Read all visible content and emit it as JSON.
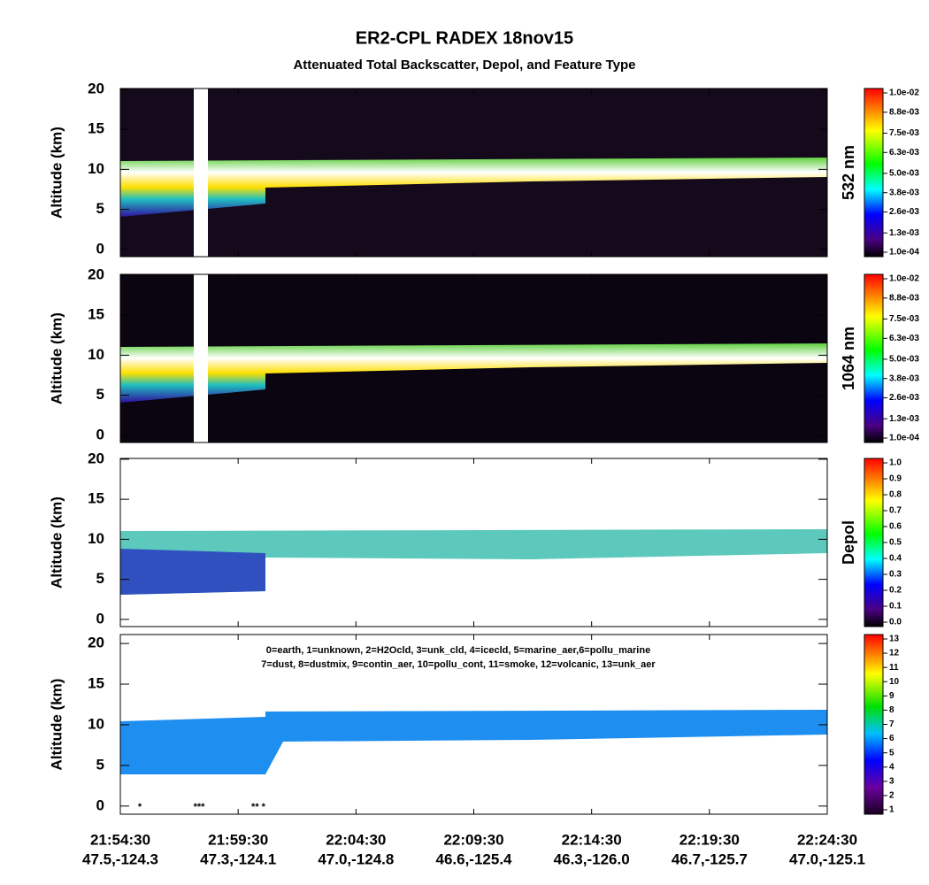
{
  "chart_data": {
    "type": "curtain",
    "title": "ER2-CPL RADEX 18nov15",
    "subtitle": "Attenuated Total Backscatter, Depol, and Feature Type",
    "categories": [
      "21:54:30",
      "21:59:30",
      "22:04:30",
      "22:09:30",
      "22:14:30",
      "22:19:30",
      "22:24:30"
    ],
    "locations": [
      "47.5,-124.3",
      "47.3,-124.1",
      "47.0,-124.8",
      "46.6,-125.4",
      "46.3,-126.0",
      "46.7,-125.7",
      "47.0,-125.1"
    ],
    "panels": [
      {
        "ylabel": "Altitude (km)",
        "ylim": [
          -0.9,
          20.1
        ],
        "yticks": [
          0,
          5,
          10,
          15,
          20
        ],
        "colorbar": {
          "label": "532 nm",
          "clim": [
            0.0001,
            0.01
          ],
          "ticks": [
            {
              "value": 0.0001,
              "label": "1.0e-04"
            },
            {
              "value": 0.0013,
              "label": "1.3e-03"
            },
            {
              "value": 0.0026,
              "label": "2.6e-03"
            },
            {
              "value": 0.0038,
              "label": "3.8e-03"
            },
            {
              "value": 0.005,
              "label": "5.0e-03"
            },
            {
              "value": 0.0063,
              "label": "6.3e-03"
            },
            {
              "value": 0.0075,
              "label": "7.5e-03"
            },
            {
              "value": 0.0088,
              "label": "8.8e-03"
            },
            {
              "value": 0.01,
              "label": "1.0e-02"
            }
          ]
        }
      },
      {
        "ylabel": "Altitude (km)",
        "ylim": [
          -0.9,
          20.1
        ],
        "yticks": [
          0,
          5,
          10,
          15,
          20
        ],
        "colorbar": {
          "label": "1064 nm",
          "clim": [
            0.0001,
            0.01
          ],
          "ticks": [
            {
              "value": 0.0001,
              "label": "1.0e-04"
            },
            {
              "value": 0.0013,
              "label": "1.3e-03"
            },
            {
              "value": 0.0026,
              "label": "2.6e-03"
            },
            {
              "value": 0.0038,
              "label": "3.8e-03"
            },
            {
              "value": 0.005,
              "label": "5.0e-03"
            },
            {
              "value": 0.0063,
              "label": "6.3e-03"
            },
            {
              "value": 0.0075,
              "label": "7.5e-03"
            },
            {
              "value": 0.0088,
              "label": "8.8e-03"
            },
            {
              "value": 0.01,
              "label": "1.0e-02"
            }
          ]
        }
      },
      {
        "ylabel": "Altitude (km)",
        "ylim": [
          -0.9,
          20.1
        ],
        "yticks": [
          0,
          5,
          10,
          15,
          20
        ],
        "colorbar": {
          "label": "Depol",
          "clim": [
            0,
            1
          ],
          "ticks": [
            {
              "value": 0,
              "label": "0.0"
            },
            0.1,
            0.2,
            0.3,
            0.4,
            0.5,
            0.6,
            0.7,
            0.8,
            0.9,
            {
              "value": 1,
              "label": "1.0"
            }
          ]
        }
      },
      {
        "ylabel": "Altitude (km)",
        "ylim": [
          -1,
          21.1
        ],
        "yticks": [
          0,
          5,
          10,
          15,
          20
        ],
        "legend_lines": [
          "0=earth, 1=unknown, 2=H2Ocld, 3=unk_cld, 4=icecld, 5=marine_aer,6=pollu_marine",
          "7=dust, 8=dustmix, 9=contin_aer, 10=pollu_cont, 11=smoke, 12=volcanic, 13=unk_aer"
        ],
        "surface_marks": [
          "*",
          "***",
          "** *"
        ],
        "colorbar": {
          "clim": [
            1,
            13
          ],
          "ticks": [
            1,
            2,
            3,
            4,
            5,
            6,
            7,
            8,
            9,
            10,
            11,
            12,
            13
          ]
        }
      }
    ]
  }
}
